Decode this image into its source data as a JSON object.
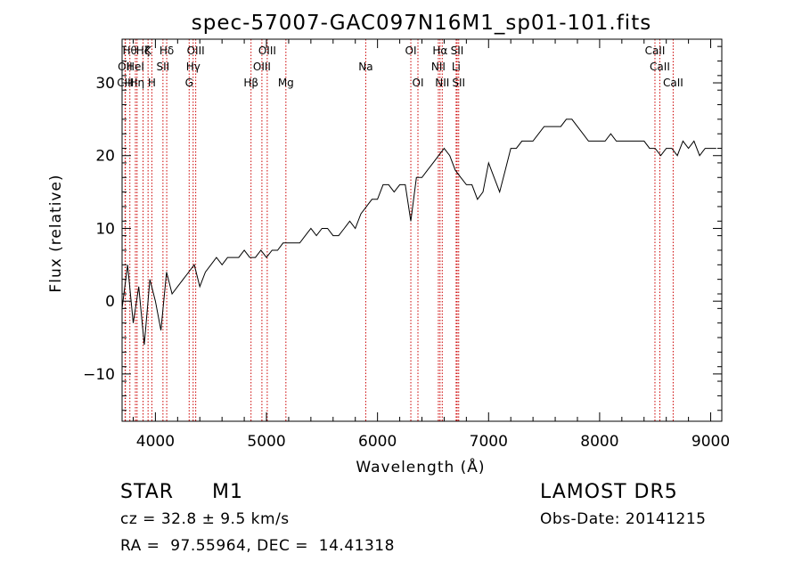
{
  "chart_data": {
    "type": "line",
    "title": "spec-57007-GAC097N16M1_sp01-101.fits",
    "xlabel": "Wavelength (Å)",
    "ylabel": "Flux (relative)",
    "xlim": [
      3700,
      9100
    ],
    "ylim": [
      -16.5,
      36
    ],
    "x_ticks": [
      4000,
      5000,
      6000,
      7000,
      8000,
      9000
    ],
    "x_tick_labels": [
      "4000",
      "5000",
      "6000",
      "7000",
      "8000",
      "9000"
    ],
    "y_ticks": [
      -10,
      0,
      10,
      20,
      30
    ],
    "y_tick_labels": [
      "−10",
      "0",
      "10",
      "20",
      "30"
    ],
    "grid": false,
    "line_color": "#000000",
    "marker_color": "#cc0000",
    "series": [
      {
        "x": [
          3700,
          3750,
          3800,
          3850,
          3900,
          3950,
          4000,
          4050,
          4100,
          4150,
          4200,
          4250,
          4300,
          4350,
          4400,
          4450,
          4500,
          4550,
          4600,
          4650,
          4700,
          4750,
          4800,
          4850,
          4900,
          4950,
          5000,
          5050,
          5100,
          5150,
          5200,
          5250,
          5300,
          5350,
          5400,
          5450,
          5500,
          5550,
          5600,
          5650,
          5700,
          5750,
          5800,
          5850,
          5900,
          5950,
          6000,
          6050,
          6100,
          6150,
          6200,
          6250,
          6300,
          6350,
          6400,
          6450,
          6500,
          6550,
          6600,
          6650,
          6700,
          6750,
          6800,
          6850,
          6900,
          6950,
          7000,
          7050,
          7100,
          7150,
          7200,
          7250,
          7300,
          7350,
          7400,
          7450,
          7500,
          7550,
          7600,
          7650,
          7700,
          7750,
          7800,
          7850,
          7900,
          7950,
          8000,
          8050,
          8100,
          8150,
          8200,
          8250,
          8300,
          8350,
          8400,
          8450,
          8500,
          8550,
          8600,
          8650,
          8700,
          8750,
          8800,
          8850,
          8900,
          8950,
          9000,
          9050
        ],
        "values": [
          -1,
          5,
          -3,
          2,
          -6,
          3,
          0,
          -4,
          4,
          1,
          2,
          3,
          4,
          5,
          2,
          4,
          5,
          6,
          5,
          6,
          6,
          6,
          7,
          6,
          6,
          7,
          6,
          7,
          7,
          8,
          8,
          8,
          8,
          9,
          10,
          9,
          10,
          10,
          9,
          9,
          10,
          11,
          10,
          12,
          13,
          14,
          14,
          16,
          16,
          15,
          16,
          16,
          11,
          17,
          17,
          18,
          19,
          20,
          21,
          20,
          18,
          17,
          16,
          16,
          14,
          15,
          19,
          17,
          15,
          18,
          21,
          21,
          22,
          22,
          22,
          23,
          24,
          24,
          24,
          24,
          25,
          25,
          24,
          23,
          22,
          22,
          22,
          22,
          23,
          22,
          22,
          22,
          22,
          22,
          22,
          21,
          21,
          20,
          21,
          21,
          20,
          22,
          21,
          22,
          20,
          21,
          21,
          21
        ]
      }
    ],
    "lines": [
      {
        "x": 3727,
        "label": "OII",
        "row": 1
      },
      {
        "x": 3730,
        "label": "CIII",
        "row": 2
      },
      {
        "x": 3770,
        "label": "Hθ",
        "row": 0
      },
      {
        "x": 3820,
        "label": "HeI",
        "row": 1
      },
      {
        "x": 3835,
        "label": "Hη",
        "row": 2
      },
      {
        "x": 3889,
        "label": "Hζ",
        "row": 0
      },
      {
        "x": 3934,
        "label": "K",
        "row": 0
      },
      {
        "x": 3968,
        "label": "H",
        "row": 2
      },
      {
        "x": 4068,
        "label": "SII",
        "row": 1
      },
      {
        "x": 4102,
        "label": "Hδ",
        "row": 0
      },
      {
        "x": 4304,
        "label": "G",
        "row": 2
      },
      {
        "x": 4340,
        "label": "Hγ",
        "row": 1
      },
      {
        "x": 4363,
        "label": "OIII",
        "row": 0
      },
      {
        "x": 4861,
        "label": "Hβ",
        "row": 2
      },
      {
        "x": 4959,
        "label": "OIII",
        "row": 1
      },
      {
        "x": 5007,
        "label": "OIII",
        "row": 0
      },
      {
        "x": 5175,
        "label": "Mg",
        "row": 2
      },
      {
        "x": 5894,
        "label": "Na",
        "row": 1
      },
      {
        "x": 6300,
        "label": "OI",
        "row": 0
      },
      {
        "x": 6364,
        "label": "OI",
        "row": 2
      },
      {
        "x": 6548,
        "label": "NII",
        "row": 1
      },
      {
        "x": 6563,
        "label": "Hα",
        "row": 0
      },
      {
        "x": 6583,
        "label": "NII",
        "row": 2
      },
      {
        "x": 6708,
        "label": "Li",
        "row": 1
      },
      {
        "x": 6717,
        "label": "SII",
        "row": 0
      },
      {
        "x": 6731,
        "label": "SII",
        "row": 2
      },
      {
        "x": 8498,
        "label": "CaII",
        "row": 0
      },
      {
        "x": 8542,
        "label": "CaII",
        "row": 1
      },
      {
        "x": 8662,
        "label": "CaII",
        "row": 2
      }
    ]
  },
  "info": {
    "object_class": "STAR",
    "subclass": "M1",
    "survey": "LAMOST DR5",
    "redshift": "cz = 32.8 ± 9.5 km/s",
    "obs_date": "Obs-Date: 20141215",
    "coords": "RA =  97.55964, DEC =  14.41318"
  }
}
